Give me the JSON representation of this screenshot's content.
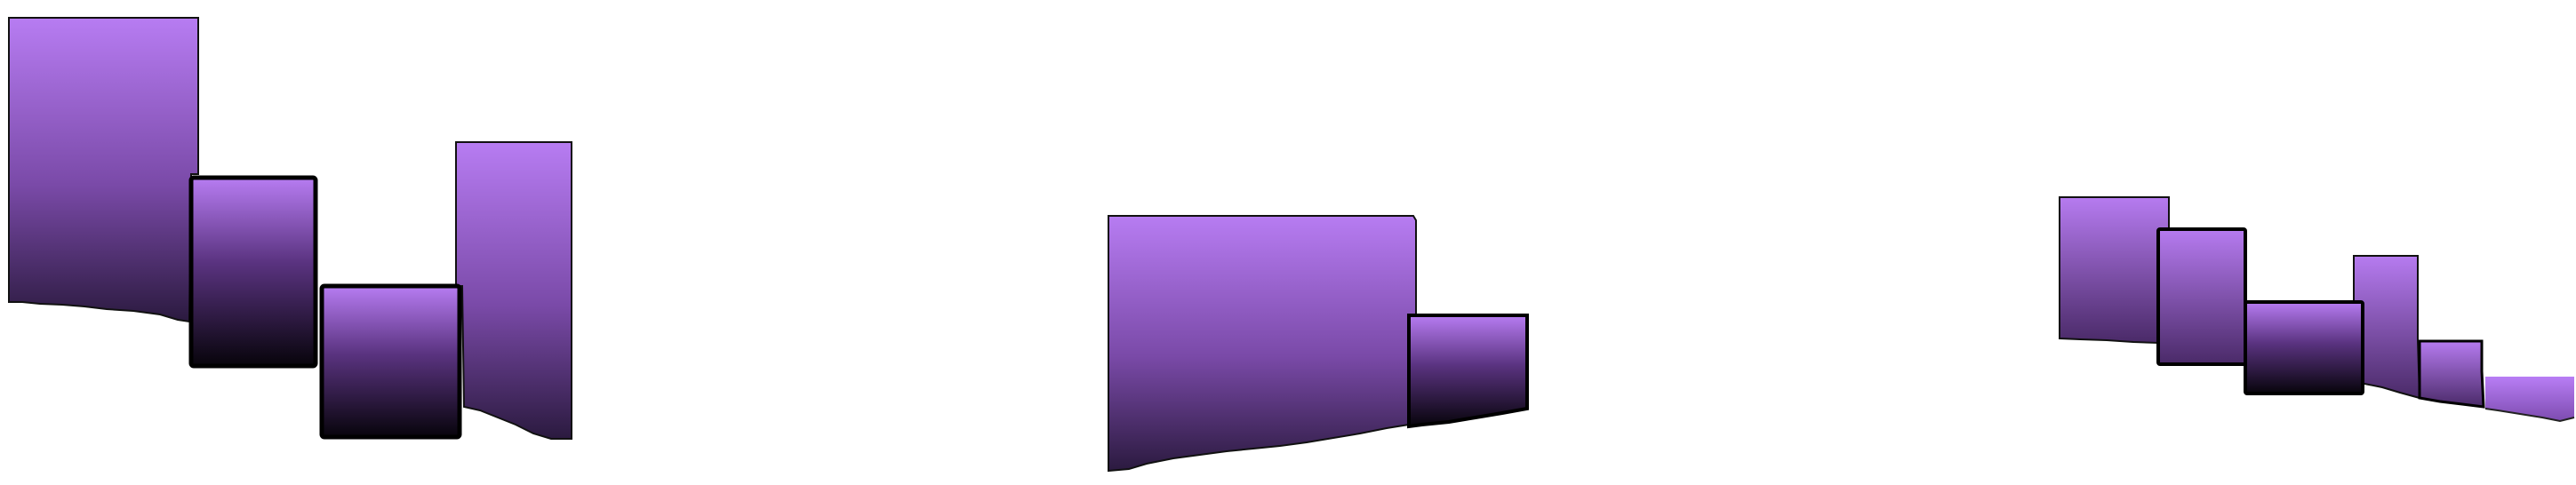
{
  "colors": {
    "background": "#ffffff",
    "violet": "#b77cf2",
    "violet_mid": "#8a55c0",
    "violet_dark": "#3a1f52",
    "near_black": "#0a0610",
    "outline": "#111111"
  },
  "groups": [
    {
      "id": "group-left",
      "blocks": [
        {
          "id": "left-tall-block",
          "style": "violet-to-dark"
        },
        {
          "id": "left-dark-block",
          "style": "violet-to-black"
        },
        {
          "id": "left-low-block",
          "style": "violet-to-black"
        },
        {
          "id": "left-right-block",
          "style": "violet-to-dark"
        }
      ]
    },
    {
      "id": "group-center",
      "blocks": [
        {
          "id": "center-wide-block",
          "style": "violet-to-dark"
        },
        {
          "id": "center-small-block",
          "style": "violet-to-black"
        }
      ]
    },
    {
      "id": "group-right",
      "blocks": [
        {
          "id": "right-first-block",
          "style": "violet-to-dark"
        },
        {
          "id": "right-second-block",
          "style": "violet-to-dark"
        },
        {
          "id": "right-third-block",
          "style": "violet-to-black"
        },
        {
          "id": "right-fourth-block",
          "style": "violet-to-dark"
        },
        {
          "id": "right-fifth-block",
          "style": "violet-to-dark"
        },
        {
          "id": "right-sixth-block",
          "style": "violet-flat"
        }
      ]
    }
  ]
}
